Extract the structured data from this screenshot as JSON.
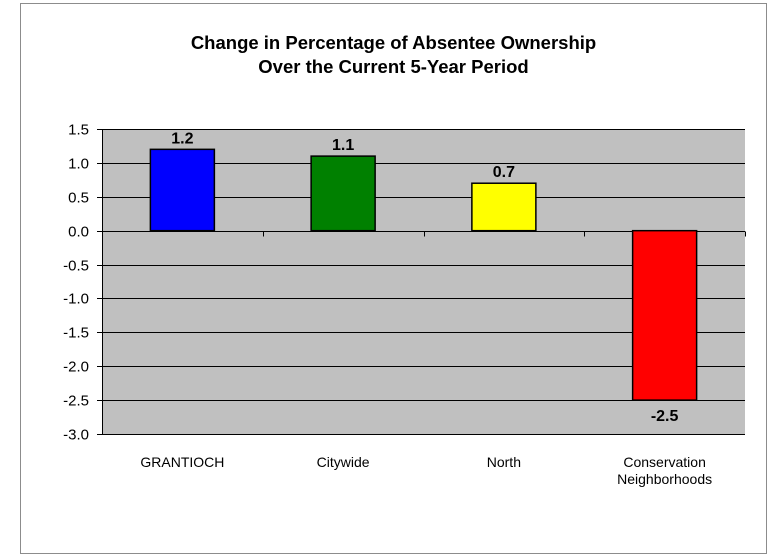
{
  "chart_data": {
    "type": "bar",
    "title": "Change in Percentage of Absentee Ownership Over the Current 5-Year Period",
    "title_lines": [
      "Change in Percentage of Absentee Ownership",
      "Over the Current 5-Year Period"
    ],
    "categories": [
      [
        "GRANTIOCH"
      ],
      [
        "Citywide"
      ],
      [
        "North"
      ],
      [
        "Conservation",
        "Neighborhoods"
      ]
    ],
    "values": [
      1.2,
      1.1,
      0.7,
      -2.5
    ],
    "data_labels": [
      "1.2",
      "1.1",
      "0.7",
      "-2.5"
    ],
    "bar_colors": [
      "#0000ff",
      "#008000",
      "#ffff00",
      "#ff0000"
    ],
    "ylim": [
      -3.0,
      1.5
    ],
    "yticks": [
      "1.5",
      "1.0",
      "0.5",
      "0.0",
      "-0.5",
      "-1.0",
      "-1.5",
      "-2.0",
      "-2.5",
      "-3.0"
    ],
    "grid": true,
    "plot_background": "#c0c0c0",
    "xlabel": "",
    "ylabel": ""
  }
}
